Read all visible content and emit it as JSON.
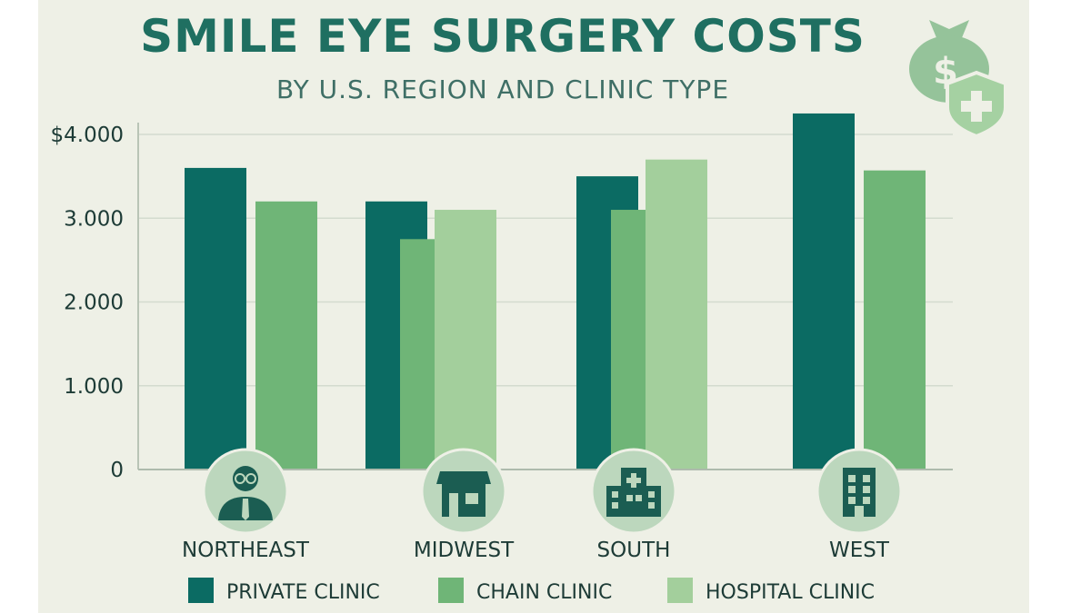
{
  "chart_data": {
    "type": "bar",
    "title": "SMILE EYE SURGERY COSTS",
    "subtitle": "BY U.S. REGION AND CLINIC TYPE",
    "categories": [
      "NORTHEAST",
      "MIDWEST",
      "SOUTH",
      "WEST"
    ],
    "category_icons": [
      "doctor-icon",
      "storefront-icon",
      "hospital-icon",
      "building-icon"
    ],
    "series": [
      {
        "name": "PRIVATE CLINIC",
        "color": "#0b6b63",
        "values": [
          3600,
          3200,
          3500,
          4250
        ]
      },
      {
        "name": "CHAIN CLINIC",
        "color": "#6fb577",
        "values": [
          3200,
          2750,
          3100,
          3570
        ]
      },
      {
        "name": "HOSPITAL CLINIC",
        "color": "#a3cf9c",
        "values": [
          null,
          3100,
          3700,
          null
        ]
      }
    ],
    "y_ticks": [
      {
        "value": 0,
        "label": "0"
      },
      {
        "value": 1000,
        "label": "1.000"
      },
      {
        "value": 2000,
        "label": "2.000"
      },
      {
        "value": 3000,
        "label": "3.000"
      },
      {
        "value": 4000,
        "label": "$4.000"
      }
    ],
    "ylim": [
      0,
      4300
    ],
    "grid": true,
    "legend_position": "bottom",
    "header_icons": [
      "money-bag-icon",
      "medical-shield-icon"
    ]
  }
}
